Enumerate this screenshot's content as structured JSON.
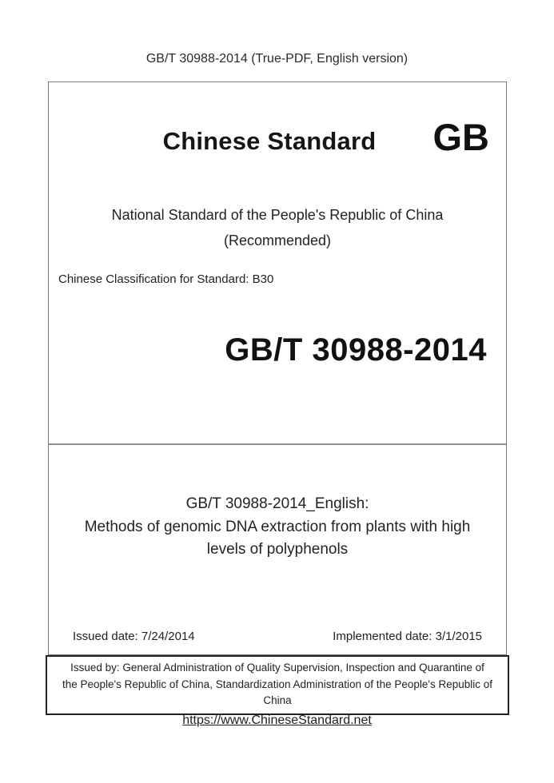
{
  "colors": {
    "text": "#1f1f1f",
    "page_background": "#ffffff",
    "main_box_border": "#7a7a7a",
    "divider": "#8f8f8f",
    "issuer_box_border": "#222222"
  },
  "header": {
    "title": "GB/T 30988-2014 (True-PDF, English version)"
  },
  "cover": {
    "brand_title": "Chinese Standard",
    "gb_logo": "GB",
    "subtitle": "National Standard of the People's Republic of China",
    "subtitle_note": "(Recommended)",
    "classification": "Chinese Classification for Standard: B30",
    "standard_code": "GB/T 30988-2014"
  },
  "title_section": {
    "lines": [
      "GB/T 30988-2014_English:",
      "Methods of genomic DNA extraction from plants with high",
      "levels of polyphenols"
    ]
  },
  "dates": {
    "issued": "Issued date: 7/24/2014",
    "implemented": "Implemented date: 3/1/2015"
  },
  "issuer": {
    "lines": [
      "Issued by: General Administration of Quality Supervision, Inspection and Quarantine of",
      "the People's Republic of China, Standardization Administration of the People's Republic of",
      "China"
    ]
  },
  "footer": {
    "link": "https://www.ChineseStandard.net"
  }
}
